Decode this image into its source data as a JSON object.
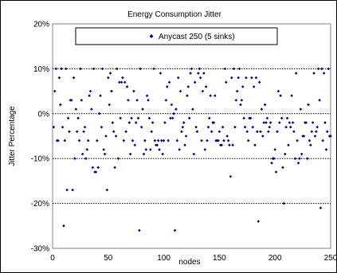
{
  "chart_data": {
    "type": "scatter",
    "title": "Energy Consumption Jitter",
    "xlabel": "nodes",
    "ylabel": "Jitter Percentage",
    "xlim": [
      0,
      250
    ],
    "ylim": [
      -30,
      20
    ],
    "x_ticks": [
      "0",
      "50",
      "100",
      "150",
      "200",
      "250"
    ],
    "y_ticks": [
      "20%",
      "10%",
      "0%",
      "-10%",
      "-20%",
      "-30%"
    ],
    "grid": "horizontal dotted at 10%, 0%, -10%, -20%",
    "legend_position": "top",
    "series": [
      {
        "name": "Anycast 250 (5 sinks)",
        "color": "#000080",
        "points": [
          [
            1,
            -3
          ],
          [
            2,
            5
          ],
          [
            3,
            10
          ],
          [
            4,
            -6
          ],
          [
            5,
            -6
          ],
          [
            6,
            8
          ],
          [
            7,
            2
          ],
          [
            8,
            10
          ],
          [
            9,
            -3
          ],
          [
            10,
            -25
          ],
          [
            11,
            -6
          ],
          [
            12,
            10
          ],
          [
            13,
            -17
          ],
          [
            14,
            -1
          ],
          [
            15,
            -4
          ],
          [
            16,
            3
          ],
          [
            17,
            3
          ],
          [
            18,
            -17
          ],
          [
            19,
            8
          ],
          [
            20,
            -10
          ],
          [
            21,
            1
          ],
          [
            22,
            -4
          ],
          [
            23,
            -1
          ],
          [
            24,
            -6
          ],
          [
            25,
            10
          ],
          [
            26,
            3
          ],
          [
            27,
            -9
          ],
          [
            28,
            -4
          ],
          [
            29,
            -3
          ],
          [
            30,
            -10
          ],
          [
            31,
            -8
          ],
          [
            32,
            -6
          ],
          [
            33,
            4
          ],
          [
            34,
            5
          ],
          [
            35,
            1
          ],
          [
            36,
            -12
          ],
          [
            37,
            10
          ],
          [
            38,
            -13
          ],
          [
            39,
            -13
          ],
          [
            40,
            -6
          ],
          [
            41,
            -12
          ],
          [
            42,
            0
          ],
          [
            43,
            4
          ],
          [
            44,
            -3
          ],
          [
            45,
            10
          ],
          [
            46,
            -8
          ],
          [
            47,
            -9
          ],
          [
            48,
            -5
          ],
          [
            49,
            -17
          ],
          [
            50,
            8
          ],
          [
            51,
            2
          ],
          [
            52,
            9
          ],
          [
            53,
            5
          ],
          [
            54,
            -2
          ],
          [
            55,
            -4
          ],
          [
            56,
            -12
          ],
          [
            57,
            -5
          ],
          [
            58,
            10
          ],
          [
            59,
            -10
          ],
          [
            60,
            7
          ],
          [
            61,
            -1
          ],
          [
            62,
            7
          ],
          [
            63,
            8
          ],
          [
            64,
            -6
          ],
          [
            65,
            7
          ],
          [
            66,
            -4
          ],
          [
            67,
            6
          ],
          [
            68,
            3
          ],
          [
            69,
            -2
          ],
          [
            70,
            -9
          ],
          [
            71,
            -1
          ],
          [
            72,
            -6
          ],
          [
            73,
            5
          ],
          [
            74,
            -7
          ],
          [
            75,
            -2
          ],
          [
            76,
            3
          ],
          [
            77,
            -1
          ],
          [
            78,
            -26
          ],
          [
            79,
            10
          ],
          [
            80,
            -3
          ],
          [
            81,
            1
          ],
          [
            82,
            -9
          ],
          [
            83,
            -6
          ],
          [
            84,
            -8
          ],
          [
            85,
            4
          ],
          [
            86,
            3
          ],
          [
            87,
            -1
          ],
          [
            88,
            -8
          ],
          [
            89,
            -4
          ],
          [
            90,
            -2
          ],
          [
            91,
            10
          ],
          [
            92,
            -6
          ],
          [
            93,
            -7
          ],
          [
            94,
            -7
          ],
          [
            95,
            -6
          ],
          [
            96,
            -8
          ],
          [
            97,
            9
          ],
          [
            98,
            -6
          ],
          [
            99,
            -9
          ],
          [
            100,
            -6
          ],
          [
            101,
            -2
          ],
          [
            102,
            3
          ],
          [
            103,
            6
          ],
          [
            104,
            -6
          ],
          [
            105,
            7
          ],
          [
            106,
            -1
          ],
          [
            107,
            2
          ],
          [
            108,
            -1
          ],
          [
            109,
            0
          ],
          [
            110,
            -26
          ],
          [
            111,
            1
          ],
          [
            112,
            -6
          ],
          [
            113,
            8
          ],
          [
            114,
            -8
          ],
          [
            115,
            5
          ],
          [
            116,
            -4
          ],
          [
            117,
            -3
          ],
          [
            118,
            -2
          ],
          [
            119,
            -7
          ],
          [
            120,
            -5
          ],
          [
            121,
            4
          ],
          [
            122,
            6
          ],
          [
            123,
            -1
          ],
          [
            124,
            9
          ],
          [
            125,
            10
          ],
          [
            126,
            1
          ],
          [
            127,
            -9
          ],
          [
            128,
            7
          ],
          [
            129,
            -3
          ],
          [
            130,
            -4
          ],
          [
            131,
            9
          ],
          [
            132,
            10
          ],
          [
            133,
            8
          ],
          [
            134,
            -6
          ],
          [
            135,
            5
          ],
          [
            136,
            9
          ],
          [
            137,
            -8
          ],
          [
            138,
            6
          ],
          [
            139,
            -6
          ],
          [
            140,
            -3
          ],
          [
            141,
            -1
          ],
          [
            142,
            4
          ],
          [
            143,
            -4
          ],
          [
            144,
            -2
          ],
          [
            145,
            -2
          ],
          [
            146,
            4
          ],
          [
            147,
            -6
          ],
          [
            148,
            -6
          ],
          [
            149,
            -6
          ],
          [
            150,
            -4
          ],
          [
            151,
            -7
          ],
          [
            152,
            -7
          ],
          [
            153,
            -3
          ],
          [
            154,
            -6
          ],
          [
            155,
            10
          ],
          [
            156,
            7
          ],
          [
            157,
            -5
          ],
          [
            158,
            -6
          ],
          [
            159,
            -7
          ],
          [
            160,
            -14
          ],
          [
            161,
            8
          ],
          [
            162,
            -7
          ],
          [
            163,
            10
          ],
          [
            164,
            -3
          ],
          [
            165,
            3
          ],
          [
            166,
            5
          ],
          [
            167,
            8
          ],
          [
            168,
            10
          ],
          [
            169,
            2
          ],
          [
            170,
            3
          ],
          [
            171,
            6
          ],
          [
            172,
            -1
          ],
          [
            173,
            -3
          ],
          [
            174,
            8
          ],
          [
            175,
            -4
          ],
          [
            176,
            -6
          ],
          [
            177,
            -1
          ],
          [
            178,
            -1
          ],
          [
            179,
            8
          ],
          [
            180,
            -3
          ],
          [
            181,
            6
          ],
          [
            182,
            -7
          ],
          [
            183,
            8
          ],
          [
            184,
            -4
          ],
          [
            185,
            -24
          ],
          [
            186,
            7
          ],
          [
            187,
            -4
          ],
          [
            188,
            1
          ],
          [
            189,
            -5
          ],
          [
            190,
            -2
          ],
          [
            191,
            2
          ],
          [
            192,
            -2
          ],
          [
            193,
            -1
          ],
          [
            194,
            -4
          ],
          [
            195,
            -3
          ],
          [
            196,
            -2
          ],
          [
            197,
            -11
          ],
          [
            198,
            -10
          ],
          [
            199,
            -10
          ],
          [
            200,
            -8
          ],
          [
            201,
            -13
          ],
          [
            202,
            -4
          ],
          [
            203,
            5
          ],
          [
            204,
            -2
          ],
          [
            205,
            4
          ],
          [
            206,
            -1
          ],
          [
            207,
            -12
          ],
          [
            208,
            -20
          ],
          [
            209,
            -9
          ],
          [
            210,
            -3
          ],
          [
            211,
            -1
          ],
          [
            212,
            -7
          ],
          [
            213,
            -2
          ],
          [
            214,
            -3
          ],
          [
            215,
            4
          ],
          [
            216,
            -2
          ],
          [
            217,
            -4
          ],
          [
            218,
            -10
          ],
          [
            219,
            9
          ],
          [
            220,
            -6
          ],
          [
            221,
            -11
          ],
          [
            222,
            -10
          ],
          [
            223,
            1
          ],
          [
            224,
            -9
          ],
          [
            225,
            -5
          ],
          [
            226,
            -5
          ],
          [
            227,
            -2
          ],
          [
            228,
            -2
          ],
          [
            229,
            -10
          ],
          [
            230,
            2
          ],
          [
            231,
            -6
          ],
          [
            232,
            -7
          ],
          [
            233,
            -4
          ],
          [
            234,
            -2
          ],
          [
            235,
            9
          ],
          [
            236,
            -5
          ],
          [
            237,
            -4
          ],
          [
            238,
            -3
          ],
          [
            239,
            10
          ],
          [
            240,
            3
          ],
          [
            241,
            -21
          ],
          [
            242,
            10
          ],
          [
            243,
            -6
          ],
          [
            244,
            9
          ],
          [
            245,
            -2
          ],
          [
            246,
            -8
          ],
          [
            247,
            -4
          ],
          [
            248,
            10
          ],
          [
            249,
            -5
          ],
          [
            250,
            -5
          ]
        ]
      }
    ]
  }
}
